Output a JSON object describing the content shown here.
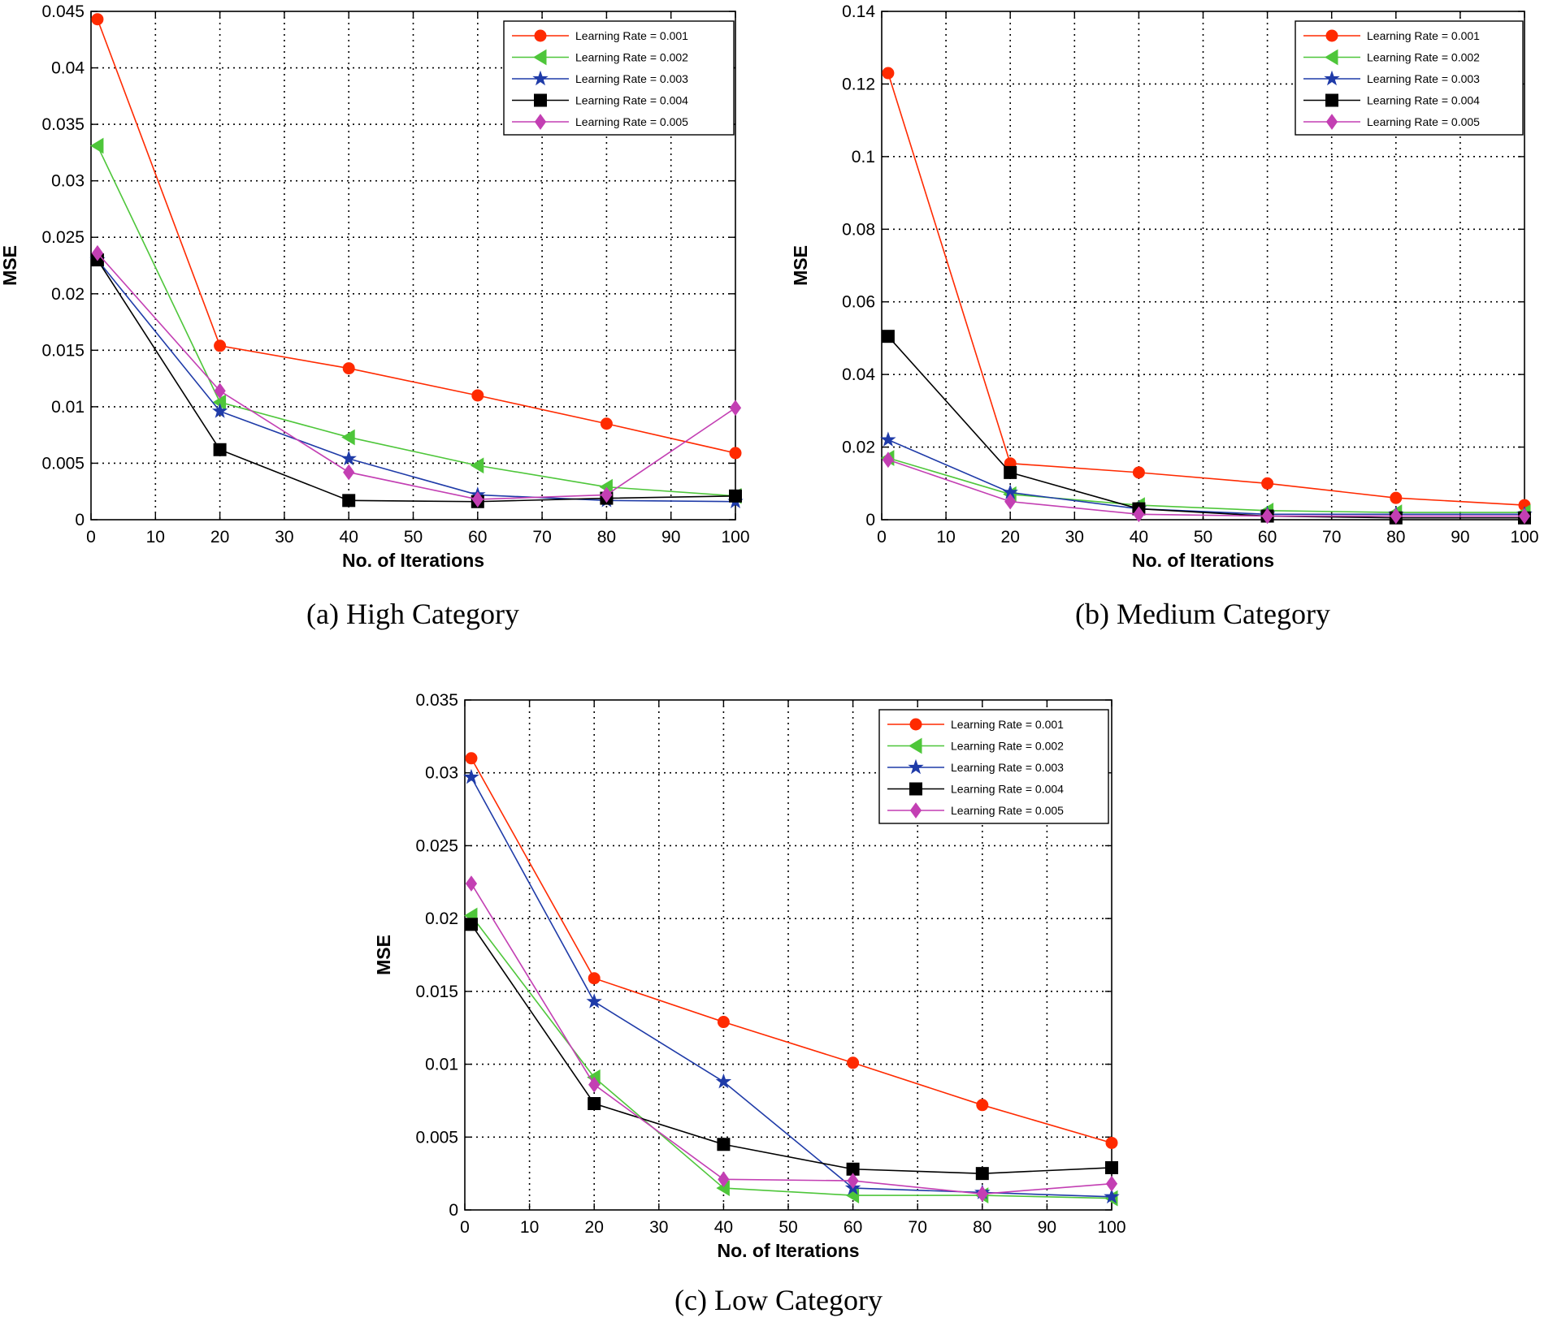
{
  "chart_data": [
    {
      "type": "line",
      "caption": "(a) High Category",
      "xlabel": "No. of Iterations",
      "ylabel": "MSE",
      "xlim": [
        0,
        100
      ],
      "ylim": [
        0,
        0.045
      ],
      "xticks": [
        "0",
        "10",
        "20",
        "30",
        "40",
        "50",
        "60",
        "70",
        "80",
        "90",
        "100"
      ],
      "yticks": [
        "0",
        "0.005",
        "0.01",
        "0.015",
        "0.02",
        "0.025",
        "0.03",
        "0.035",
        "0.04",
        "0.045"
      ],
      "grid": true,
      "legend_position": "top-right",
      "x": [
        1,
        20,
        40,
        60,
        80,
        100
      ],
      "series": [
        {
          "name": "Learning Rate = 0.001",
          "color": "#ff2a00",
          "marker": "circle",
          "values": [
            0.0443,
            0.0154,
            0.0134,
            0.011,
            0.0085,
            0.0059
          ]
        },
        {
          "name": "Learning Rate = 0.002",
          "color": "#4ec63a",
          "marker": "triangle-left",
          "values": [
            0.0331,
            0.0104,
            0.0073,
            0.0048,
            0.0029,
            0.0021
          ]
        },
        {
          "name": "Learning Rate = 0.003",
          "color": "#1f3ba8",
          "marker": "star",
          "values": [
            0.023,
            0.0096,
            0.0054,
            0.0022,
            0.0017,
            0.0016
          ]
        },
        {
          "name": "Learning Rate = 0.004",
          "color": "#000000",
          "marker": "square",
          "values": [
            0.023,
            0.0062,
            0.0017,
            0.0016,
            0.0019,
            0.0021
          ]
        },
        {
          "name": "Learning Rate = 0.005",
          "color": "#c33fb3",
          "marker": "diamond",
          "values": [
            0.0236,
            0.0114,
            0.0042,
            0.0018,
            0.0022,
            0.0099
          ]
        }
      ]
    },
    {
      "type": "line",
      "caption": "(b) Medium Category",
      "xlabel": "No. of Iterations",
      "ylabel": "MSE",
      "xlim": [
        0,
        100
      ],
      "ylim": [
        0,
        0.14
      ],
      "xticks": [
        "0",
        "10",
        "20",
        "30",
        "40",
        "50",
        "60",
        "70",
        "80",
        "90",
        "100"
      ],
      "yticks": [
        "0",
        "0.02",
        "0.04",
        "0.06",
        "0.08",
        "0.1",
        "0.12",
        "0.14"
      ],
      "grid": true,
      "legend_position": "top-right",
      "x": [
        1,
        20,
        40,
        60,
        80,
        100
      ],
      "series": [
        {
          "name": "Learning Rate = 0.001",
          "color": "#ff2a00",
          "marker": "circle",
          "values": [
            0.123,
            0.0155,
            0.013,
            0.01,
            0.006,
            0.004
          ]
        },
        {
          "name": "Learning Rate = 0.002",
          "color": "#4ec63a",
          "marker": "triangle-left",
          "values": [
            0.017,
            0.007,
            0.004,
            0.0025,
            0.002,
            0.002
          ]
        },
        {
          "name": "Learning Rate = 0.003",
          "color": "#1f3ba8",
          "marker": "star",
          "values": [
            0.022,
            0.0075,
            0.003,
            0.0015,
            0.0015,
            0.0015
          ]
        },
        {
          "name": "Learning Rate = 0.004",
          "color": "#000000",
          "marker": "square",
          "values": [
            0.0505,
            0.013,
            0.003,
            0.001,
            0.0005,
            0.0005
          ]
        },
        {
          "name": "Learning Rate = 0.005",
          "color": "#c33fb3",
          "marker": "diamond",
          "values": [
            0.0165,
            0.005,
            0.0015,
            0.001,
            0.001,
            0.001
          ]
        }
      ]
    },
    {
      "type": "line",
      "caption": "(c) Low Category",
      "xlabel": "No. of Iterations",
      "ylabel": "MSE",
      "xlim": [
        0,
        100
      ],
      "ylim": [
        0,
        0.035
      ],
      "xticks": [
        "0",
        "10",
        "20",
        "30",
        "40",
        "50",
        "60",
        "70",
        "80",
        "90",
        "100"
      ],
      "yticks": [
        "0",
        "0.005",
        "0.01",
        "0.015",
        "0.02",
        "0.025",
        "0.03",
        "0.035"
      ],
      "grid": true,
      "legend_position": "top-right",
      "x": [
        1,
        20,
        40,
        60,
        80,
        100
      ],
      "series": [
        {
          "name": "Learning Rate = 0.001",
          "color": "#ff2a00",
          "marker": "circle",
          "values": [
            0.031,
            0.0159,
            0.0129,
            0.0101,
            0.0072,
            0.0046
          ]
        },
        {
          "name": "Learning Rate = 0.002",
          "color": "#4ec63a",
          "marker": "triangle-left",
          "values": [
            0.0202,
            0.0091,
            0.0015,
            0.001,
            0.001,
            0.0008
          ]
        },
        {
          "name": "Learning Rate = 0.003",
          "color": "#1f3ba8",
          "marker": "star",
          "values": [
            0.0297,
            0.0143,
            0.0088,
            0.0015,
            0.0012,
            0.0009
          ]
        },
        {
          "name": "Learning Rate = 0.004",
          "color": "#000000",
          "marker": "square",
          "values": [
            0.0196,
            0.0073,
            0.0045,
            0.0028,
            0.0025,
            0.0029
          ]
        },
        {
          "name": "Learning Rate = 0.005",
          "color": "#c33fb3",
          "marker": "diamond",
          "values": [
            0.0224,
            0.0086,
            0.0021,
            0.002,
            0.0011,
            0.0018
          ]
        }
      ]
    }
  ]
}
